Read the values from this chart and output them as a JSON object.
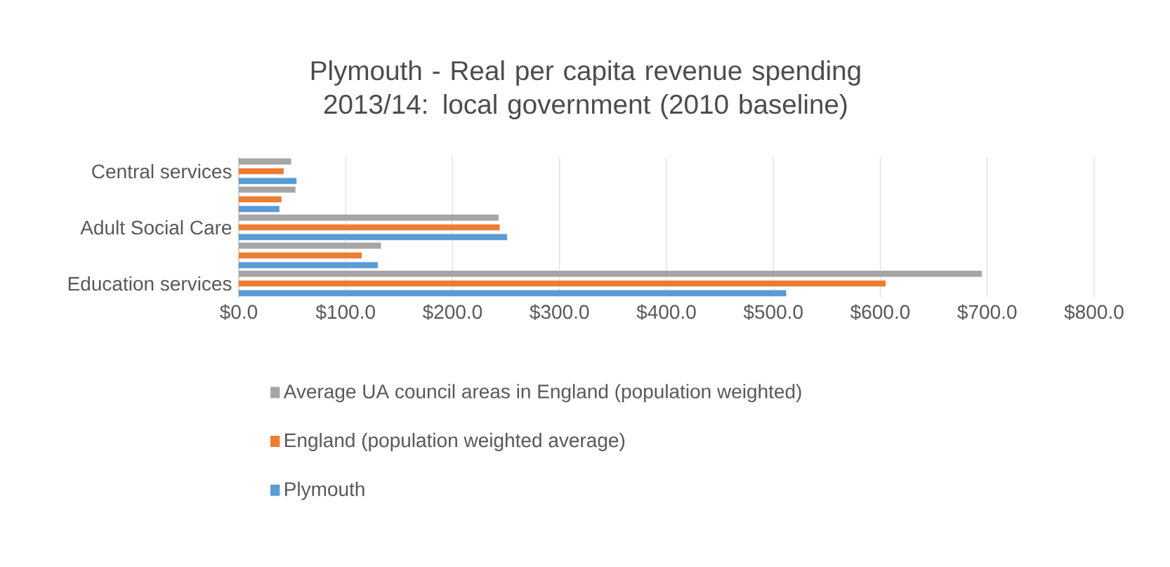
{
  "chart_data": {
    "type": "bar",
    "orientation": "horizontal",
    "title": "Plymouth - Real per capita revenue spending 2013/14: local government (2010 baseline)",
    "categories": [
      "Central services",
      null,
      "Adult Social Care",
      null,
      "Education services"
    ],
    "series": [
      {
        "name": "Average UA council areas in England (population weighted)",
        "color": "#a5a5a5",
        "values": [
          49,
          53,
          243,
          133,
          695
        ]
      },
      {
        "name": "England (population weighted average)",
        "color": "#ed7d31",
        "values": [
          42,
          40,
          244,
          115,
          605
        ]
      },
      {
        "name": "Plymouth",
        "color": "#5b9bd5",
        "values": [
          54,
          38,
          251,
          130,
          512
        ]
      }
    ],
    "xlim": [
      0,
      800
    ],
    "xticks": [
      {
        "value": 0,
        "label": "$0.0"
      },
      {
        "value": 100,
        "label": "$100.0"
      },
      {
        "value": 200,
        "label": "$200.0"
      },
      {
        "value": 300,
        "label": "$300.0"
      },
      {
        "value": 400,
        "label": "$400.0"
      },
      {
        "value": 500,
        "label": "$500.0"
      },
      {
        "value": 600,
        "label": "$600.0"
      },
      {
        "value": 700,
        "label": "$700.0"
      },
      {
        "value": 800,
        "label": "$800.0"
      }
    ],
    "grid": "x",
    "legend": "bottom"
  }
}
